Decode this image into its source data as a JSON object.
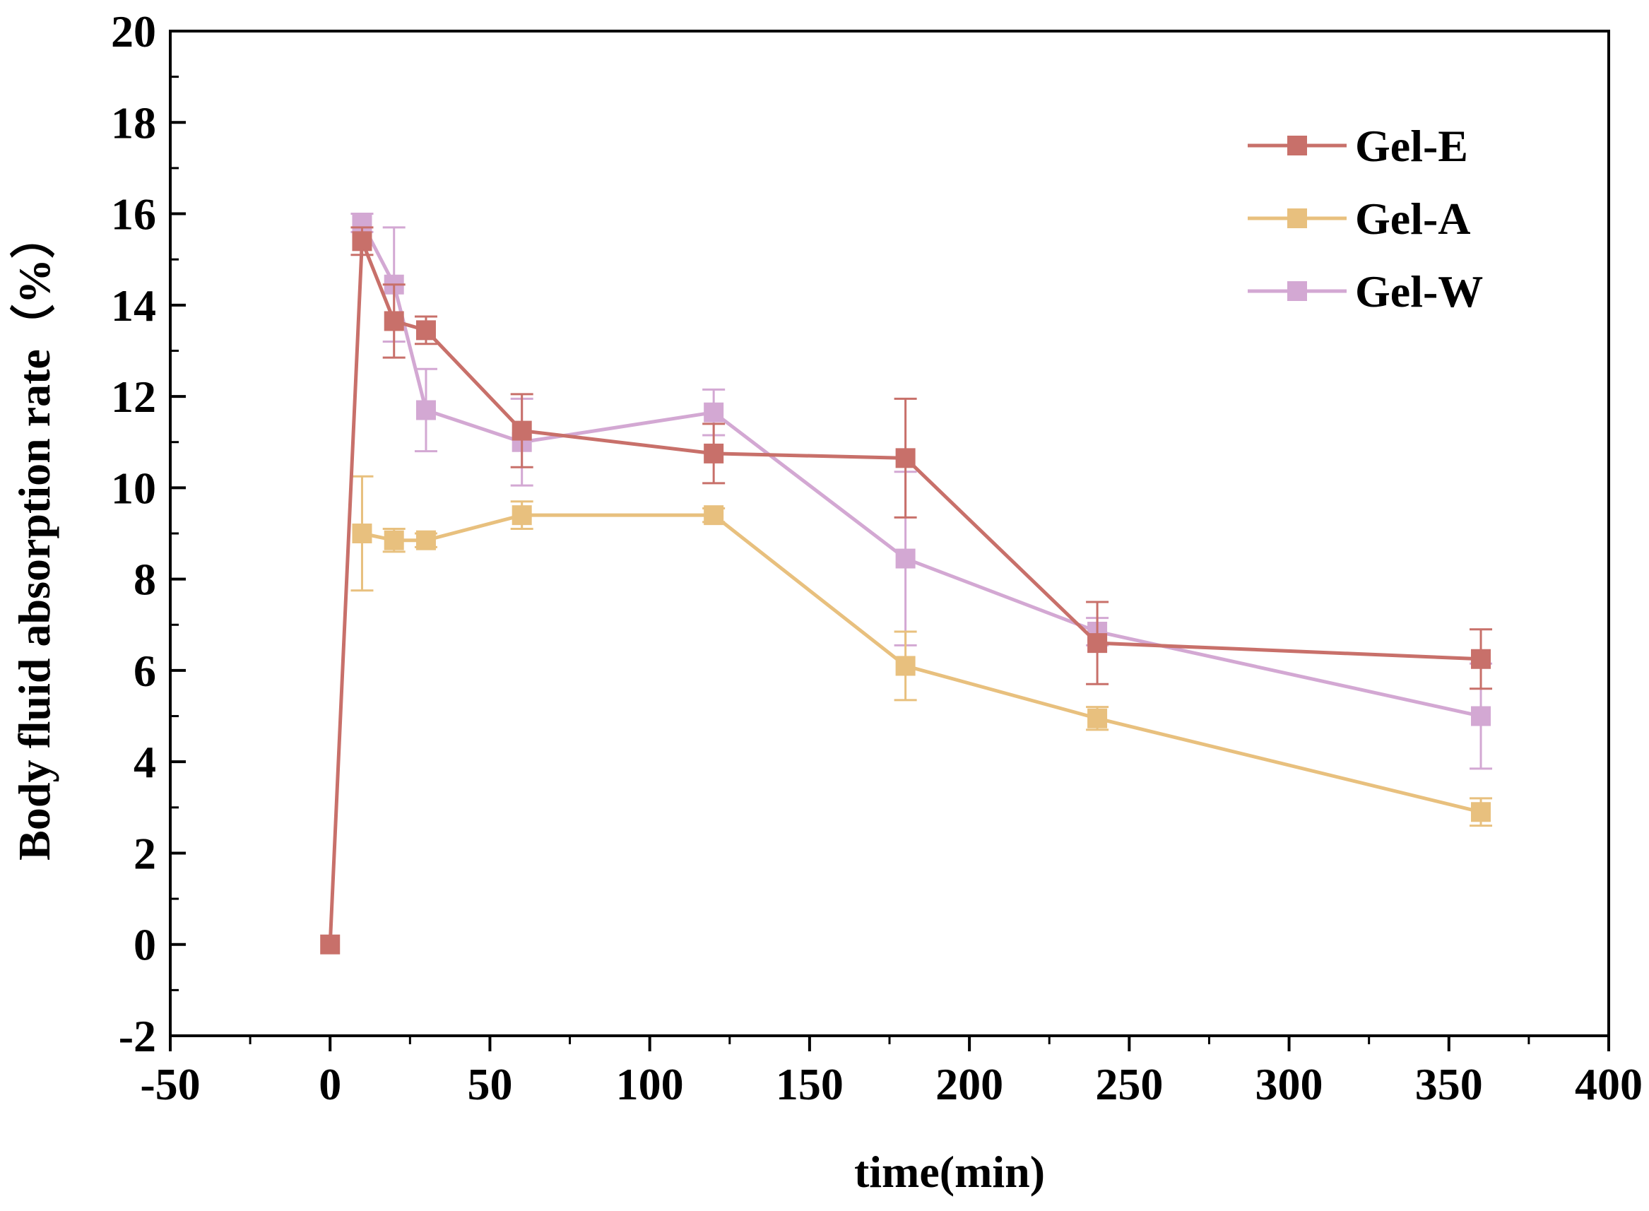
{
  "chart_data": {
    "type": "line",
    "title": "",
    "xlabel": "time(min)",
    "ylabel": "Body fluid absorption rate（%）",
    "xlim": [
      -50,
      400
    ],
    "ylim": [
      -2,
      20
    ],
    "xticks": [
      -50,
      0,
      50,
      100,
      150,
      200,
      250,
      300,
      350,
      400
    ],
    "yticks": [
      -2,
      0,
      2,
      4,
      6,
      8,
      10,
      12,
      14,
      16,
      18,
      20
    ],
    "xtick_labels": [
      "-50",
      "0",
      "50",
      "100",
      "150",
      "200",
      "250",
      "300",
      "350",
      "400"
    ],
    "ytick_labels": [
      "-2",
      "0",
      "2",
      "4",
      "6",
      "8",
      "10",
      "12",
      "14",
      "16",
      "18",
      "20"
    ],
    "grid": false,
    "legend_position": "top-right",
    "series": [
      {
        "name": "Gel-E",
        "color": "#c8706a",
        "x": [
          0,
          10,
          20,
          30,
          60,
          120,
          180,
          240,
          360
        ],
        "values": [
          0,
          15.4,
          13.65,
          13.45,
          11.25,
          10.75,
          10.65,
          6.6,
          6.25
        ],
        "errors": [
          0,
          0.3,
          0.8,
          0.3,
          0.8,
          0.65,
          1.3,
          0.9,
          0.65
        ]
      },
      {
        "name": "Gel-A",
        "color": "#e8c07e",
        "x": [
          10,
          20,
          30,
          60,
          120,
          180,
          240,
          360
        ],
        "values": [
          9.0,
          8.85,
          8.85,
          9.4,
          9.4,
          6.1,
          4.95,
          2.9
        ],
        "errors": [
          1.25,
          0.25,
          0.15,
          0.3,
          0.15,
          0.75,
          0.25,
          0.3
        ]
      },
      {
        "name": "Gel-W",
        "color": "#d3a8d3",
        "x": [
          10,
          20,
          30,
          60,
          120,
          180,
          240,
          360
        ],
        "values": [
          15.8,
          14.45,
          11.7,
          11.0,
          11.65,
          8.45,
          6.85,
          5.0
        ],
        "errors": [
          0.2,
          1.25,
          0.9,
          0.95,
          0.5,
          1.9,
          0.3,
          1.15
        ]
      }
    ]
  }
}
